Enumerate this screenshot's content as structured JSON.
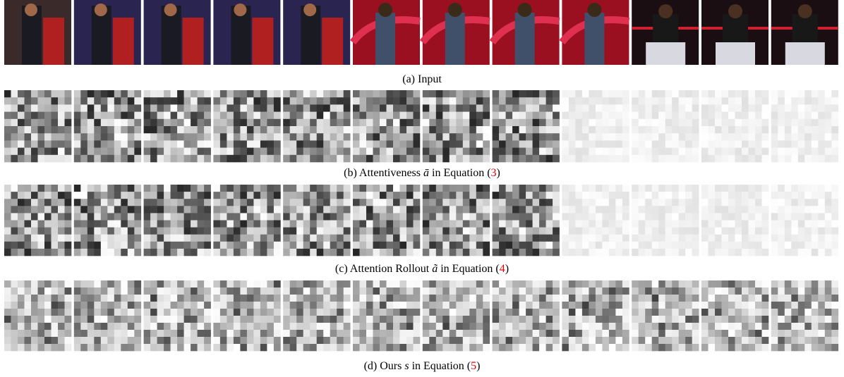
{
  "figure": {
    "panels": [
      {
        "caption": {
          "label": "(a) Input"
        }
      },
      {
        "caption": {
          "label": "(b) Attentiveness",
          "symbol": "ā",
          "text": "in Equation (",
          "ref": "3",
          "close": ")"
        }
      },
      {
        "caption": {
          "label": "(c) Attention Rollout",
          "symbol": "ã",
          "text": "in Equation (",
          "ref": "4",
          "close": ")"
        }
      },
      {
        "caption": {
          "label": "(d) Ours",
          "symbol": "s",
          "text": "in Equation (",
          "ref": "5",
          "close": ")"
        }
      }
    ]
  }
}
